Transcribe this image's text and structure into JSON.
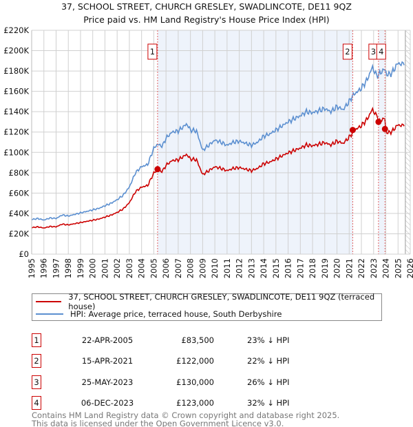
{
  "chart_data": {
    "type": "line",
    "title": "37, SCHOOL STREET, CHURCH GRESLEY, SWADLINCOTE, DE11 9QZ",
    "subtitle": "Price paid vs. HM Land Registry's House Price Index (HPI)",
    "xlim": [
      1995,
      2026
    ],
    "ylim": [
      0,
      220000
    ],
    "x_ticks": [
      "1995",
      "1996",
      "1997",
      "1998",
      "1999",
      "2000",
      "2001",
      "2002",
      "2003",
      "2004",
      "2005",
      "2006",
      "2007",
      "2008",
      "2009",
      "2010",
      "2011",
      "2012",
      "2013",
      "2014",
      "2015",
      "2016",
      "2017",
      "2018",
      "2019",
      "2020",
      "2021",
      "2022",
      "2023",
      "2024",
      "2025",
      "2026"
    ],
    "y_ticks": [
      {
        "v": 0,
        "label": "£0"
      },
      {
        "v": 20000,
        "label": "£20K"
      },
      {
        "v": 40000,
        "label": "£40K"
      },
      {
        "v": 60000,
        "label": "£60K"
      },
      {
        "v": 80000,
        "label": "£80K"
      },
      {
        "v": 100000,
        "label": "£100K"
      },
      {
        "v": 120000,
        "label": "£120K"
      },
      {
        "v": 140000,
        "label": "£140K"
      },
      {
        "v": 160000,
        "label": "£160K"
      },
      {
        "v": 180000,
        "label": "£180K"
      },
      {
        "v": 200000,
        "label": "£200K"
      },
      {
        "v": 220000,
        "label": "£220K"
      }
    ],
    "grid": true,
    "forecast_from": 2025.6,
    "colors": {
      "property": "#cc0000",
      "hpi": "#5b8fd0",
      "shade": "#eef3fb"
    },
    "hpi_series": {
      "name": "HPI: Average price, terraced house, South Derbyshire",
      "x": [
        1995,
        1995.5,
        1996,
        1996.5,
        1997,
        1997.5,
        1998,
        1998.5,
        1999,
        1999.5,
        2000,
        2000.5,
        2001,
        2001.5,
        2002,
        2002.5,
        2003,
        2003.5,
        2004,
        2004.5,
        2005,
        2005.3,
        2005.7,
        2006,
        2006.5,
        2007,
        2007.7,
        2008,
        2008.5,
        2009,
        2009.5,
        2010,
        2010.5,
        2011,
        2011.5,
        2012,
        2012.5,
        2013,
        2013.5,
        2014,
        2014.5,
        2015,
        2015.5,
        2016,
        2016.5,
        2017,
        2017.5,
        2018,
        2018.5,
        2019,
        2019.5,
        2020,
        2020.5,
        2021,
        2021.3,
        2021.7,
        2022,
        2022.5,
        2022.9,
        2023.2,
        2023.4,
        2023.7,
        2023.9,
        2024.1,
        2024.5,
        2025,
        2025.3,
        2025.55
      ],
      "values": [
        34000,
        35000,
        33500,
        35500,
        35000,
        38500,
        37500,
        39000,
        40500,
        42000,
        43500,
        45000,
        47500,
        50000,
        53500,
        58000,
        66000,
        80000,
        86000,
        88000,
        104000,
        108000,
        106000,
        114000,
        120000,
        121000,
        128000,
        122000,
        121000,
        102000,
        107000,
        112000,
        110000,
        107000,
        110000,
        111000,
        109000,
        107000,
        110000,
        116000,
        118000,
        122000,
        126000,
        130000,
        133000,
        136000,
        140000,
        139000,
        141000,
        143000,
        140000,
        145000,
        142000,
        150000,
        156000,
        160000,
        163000,
        172000,
        184000,
        176000,
        176000,
        180000,
        182000,
        176000,
        178000,
        188000,
        186000,
        190000
      ]
    },
    "property_series": {
      "name": "37, SCHOOL STREET, CHURCH GRESLEY, SWADLINCOTE, DE11 9QZ (terraced house)"
    },
    "sales": [
      {
        "n": "1",
        "x": 2005.31,
        "date": "22-APR-2005",
        "price": 83500,
        "price_label": "£83,500",
        "hpi_label": "23% ↓ HPI"
      },
      {
        "n": "2",
        "x": 2021.29,
        "date": "15-APR-2021",
        "price": 122000,
        "price_label": "£122,000",
        "hpi_label": "22% ↓ HPI"
      },
      {
        "n": "3",
        "x": 2023.4,
        "date": "25-MAY-2023",
        "price": 130000,
        "price_label": "£130,000",
        "hpi_label": "26% ↓ HPI"
      },
      {
        "n": "4",
        "x": 2023.93,
        "date": "06-DEC-2023",
        "price": 123000,
        "price_label": "£123,000",
        "hpi_label": "32% ↓ HPI"
      }
    ]
  },
  "legend": {
    "property": "37, SCHOOL STREET, CHURCH GRESLEY, SWADLINCOTE, DE11 9QZ (terraced house)",
    "hpi": "HPI: Average price, terraced house, South Derbyshire"
  },
  "footer": {
    "line1": "Contains HM Land Registry data © Crown copyright and database right 2025.",
    "line2": "This data is licensed under the Open Government Licence v3.0."
  }
}
